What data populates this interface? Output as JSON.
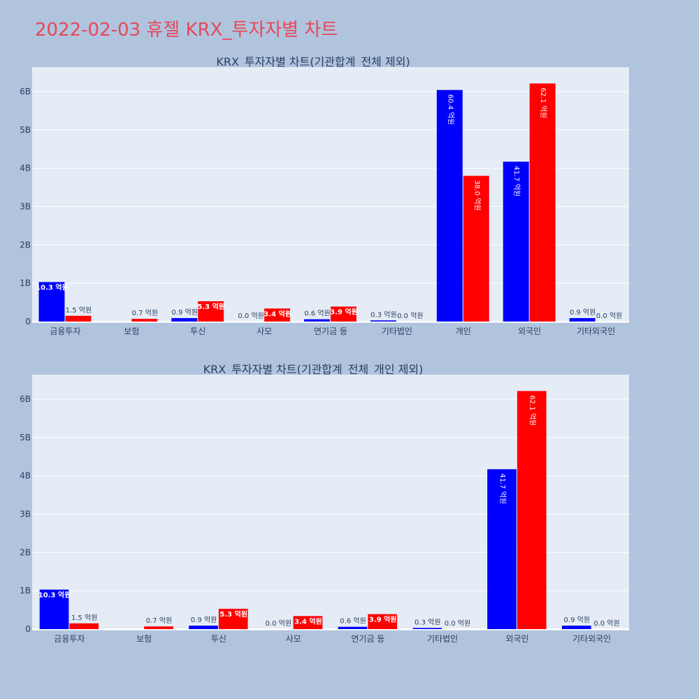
{
  "page_title": "2022-02-03 휴젤 KRX_투자자별 차트",
  "colors": {
    "background": "#b0c4de",
    "plot_bg": "#e5ecf6",
    "title": "#e8475a",
    "series_a": "#0000ff",
    "series_b": "#ff0000",
    "text": "#2a3f5f"
  },
  "chart_data": [
    {
      "type": "bar",
      "title": "KRX_투자자별 차트(기관합계_전체 제외)",
      "categories": [
        "금융투자",
        "보험",
        "투신",
        "사모",
        "연기금 등",
        "기타법인",
        "개인",
        "외국인",
        "기타외국인"
      ],
      "series": [
        {
          "values": [
            1030000000,
            0,
            90000000,
            0,
            60000000,
            30000000,
            6040000000,
            4170000000,
            90000000
          ],
          "labels": [
            "10.3 억원",
            "",
            "0.9 억원",
            "0.0 억원",
            "0.6 억원",
            "0.3 억원",
            "60.4 억원",
            "41.7 억원",
            "0.9 억원"
          ]
        },
        {
          "values": [
            150000000,
            70000000,
            530000000,
            340000000,
            390000000,
            0,
            3800000000,
            6210000000,
            0
          ],
          "labels": [
            "1.5 억원",
            "0.7 억원",
            "5.3 억원",
            "3.4 억원",
            "3.9 억원",
            "0.0 억원",
            "38.0 억원",
            "62.1 억원",
            "0.0 억원"
          ]
        }
      ],
      "yticks": [
        0,
        1000000000,
        2000000000,
        3000000000,
        4000000000,
        5000000000,
        6000000000
      ],
      "yticklabels": [
        "0",
        "1B",
        "2B",
        "3B",
        "4B",
        "5B",
        "6B"
      ],
      "ylim": [
        0,
        6600000000
      ],
      "grid": true
    },
    {
      "type": "bar",
      "title": "KRX_투자자별 차트(기관합계_전체_개인 제외)",
      "categories": [
        "금융투자",
        "보험",
        "투신",
        "사모",
        "연기금 등",
        "기타법인",
        "외국인",
        "기타외국인"
      ],
      "series": [
        {
          "values": [
            1030000000,
            0,
            90000000,
            0,
            60000000,
            30000000,
            4170000000,
            90000000
          ],
          "labels": [
            "10.3 억원",
            "",
            "0.9 억원",
            "0.0 억원",
            "0.6 억원",
            "0.3 억원",
            "41.7 억원",
            "0.9 억원"
          ]
        },
        {
          "values": [
            150000000,
            70000000,
            530000000,
            340000000,
            390000000,
            0,
            6210000000,
            0
          ],
          "labels": [
            "1.5 억원",
            "0.7 억원",
            "5.3 억원",
            "3.4 억원",
            "3.9 억원",
            "0.0 억원",
            "62.1 억원",
            "0.0 억원"
          ]
        }
      ],
      "yticks": [
        0,
        1000000000,
        2000000000,
        3000000000,
        4000000000,
        5000000000,
        6000000000
      ],
      "yticklabels": [
        "0",
        "1B",
        "2B",
        "3B",
        "4B",
        "5B",
        "6B"
      ],
      "ylim": [
        0,
        6600000000
      ],
      "grid": true
    }
  ]
}
